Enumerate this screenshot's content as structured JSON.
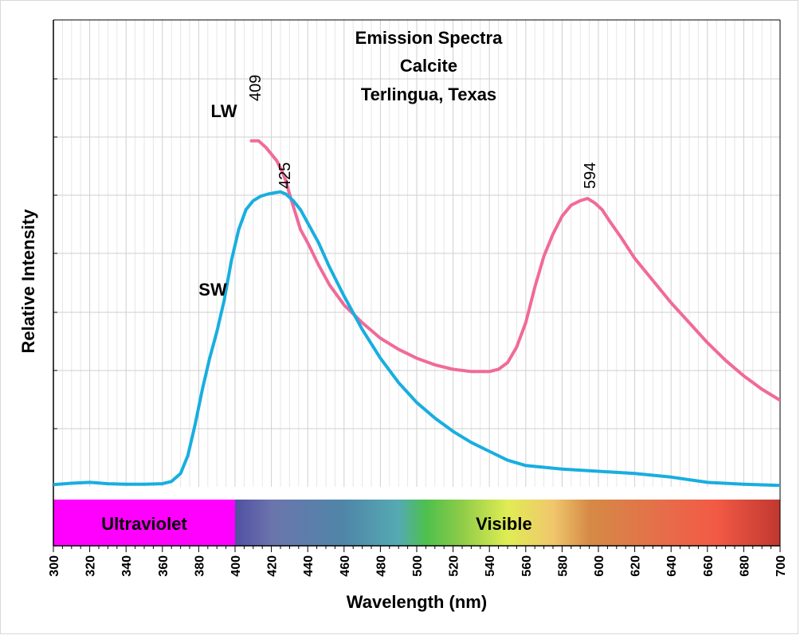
{
  "chart_data": {
    "type": "line",
    "title": [
      "Emission Spectra",
      "Calcite",
      "Terlingua, Texas"
    ],
    "xlabel": "Wavelength (nm)",
    "ylabel": "Relative Intensity",
    "xlim": [
      300,
      700
    ],
    "ylim": [
      0,
      1
    ],
    "x_ticks": [
      "300",
      "320",
      "340",
      "360",
      "380",
      "400",
      "420",
      "440",
      "460",
      "480",
      "500",
      "520",
      "540",
      "560",
      "580",
      "600",
      "620",
      "640",
      "660",
      "680",
      "700"
    ],
    "grid": true,
    "series": [
      {
        "name": "LW",
        "color": "#f06a9a",
        "peak": "409",
        "x": [
          409,
          413,
          417,
          420,
          423,
          426,
          428,
          430,
          433,
          436,
          440,
          446,
          452,
          460,
          470,
          480,
          490,
          500,
          510,
          520,
          530,
          540,
          545,
          550,
          555,
          560,
          565,
          570,
          575,
          580,
          585,
          590,
          594,
          598,
          602,
          606,
          612,
          620,
          630,
          640,
          650,
          660,
          670,
          680,
          690,
          700
        ],
        "y": [
          0.78,
          0.78,
          0.765,
          0.75,
          0.735,
          0.71,
          0.69,
          0.66,
          0.62,
          0.58,
          0.55,
          0.5,
          0.455,
          0.41,
          0.37,
          0.335,
          0.31,
          0.29,
          0.275,
          0.265,
          0.26,
          0.26,
          0.265,
          0.28,
          0.315,
          0.37,
          0.45,
          0.52,
          0.57,
          0.61,
          0.635,
          0.645,
          0.65,
          0.64,
          0.625,
          0.6,
          0.565,
          0.515,
          0.465,
          0.415,
          0.37,
          0.325,
          0.285,
          0.25,
          0.22,
          0.195
        ]
      },
      {
        "name": "SW",
        "color": "#18aee0",
        "peak": "425",
        "x": [
          300,
          310,
          320,
          330,
          340,
          350,
          360,
          365,
          370,
          374,
          378,
          382,
          386,
          390,
          394,
          398,
          402,
          406,
          410,
          414,
          418,
          422,
          425,
          428,
          432,
          436,
          440,
          446,
          452,
          460,
          470,
          480,
          490,
          500,
          510,
          520,
          530,
          540,
          550,
          560,
          580,
          600,
          620,
          640,
          660,
          680,
          700
        ],
        "y": [
          0.005,
          0.008,
          0.01,
          0.007,
          0.006,
          0.006,
          0.007,
          0.012,
          0.03,
          0.07,
          0.14,
          0.22,
          0.29,
          0.35,
          0.42,
          0.51,
          0.58,
          0.625,
          0.645,
          0.655,
          0.66,
          0.663,
          0.665,
          0.66,
          0.645,
          0.625,
          0.595,
          0.55,
          0.495,
          0.43,
          0.355,
          0.29,
          0.235,
          0.19,
          0.155,
          0.125,
          0.1,
          0.08,
          0.06,
          0.048,
          0.04,
          0.035,
          0.03,
          0.022,
          0.01,
          0.006,
          0.003
        ]
      }
    ],
    "spectrum_bar": {
      "ultraviolet_label": "Ultraviolet",
      "visible_label": "Visible",
      "ultraviolet_range": [
        300,
        400
      ],
      "visible_range": [
        400,
        700
      ],
      "ultraviolet_color": "#ff00ff",
      "visible_stops": [
        {
          "nm": 400,
          "color": "#5150a2"
        },
        {
          "nm": 420,
          "color": "#6b74ad"
        },
        {
          "nm": 460,
          "color": "#4f86a8"
        },
        {
          "nm": 490,
          "color": "#55aab3"
        },
        {
          "nm": 505,
          "color": "#4dbf4d"
        },
        {
          "nm": 525,
          "color": "#8fcc48"
        },
        {
          "nm": 550,
          "color": "#e0ec54"
        },
        {
          "nm": 575,
          "color": "#f0c76c"
        },
        {
          "nm": 595,
          "color": "#d58a46"
        },
        {
          "nm": 640,
          "color": "#e86a4a"
        },
        {
          "nm": 665,
          "color": "#f25a45"
        },
        {
          "nm": 700,
          "color": "#c03830"
        }
      ]
    }
  }
}
